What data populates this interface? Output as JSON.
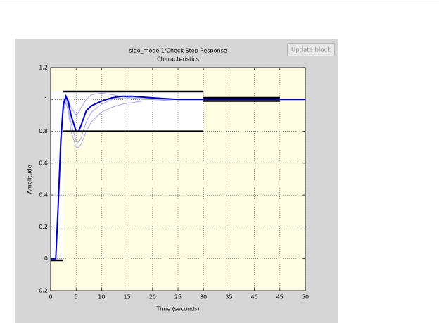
{
  "ui": {
    "button": "Update block"
  },
  "chart_data": {
    "type": "line",
    "title": [
      "sldo_model1/Check Step Response",
      "Characteristics"
    ],
    "x_label": "Time (seconds)",
    "y_label": "Amplitude",
    "x": [
      0,
      1,
      1.5,
      2,
      2.5,
      3,
      3.5,
      4,
      5,
      5.5,
      6,
      7,
      8,
      10,
      12,
      14,
      16,
      18,
      20,
      25,
      30,
      35,
      40,
      45,
      50
    ],
    "series": [
      {
        "color": "#9a9af0",
        "values": [
          0,
          0,
          0.3,
          0.7,
          0.95,
          1.0,
          0.95,
          0.85,
          0.74,
          0.73,
          0.76,
          0.86,
          0.92,
          0.97,
          1.0,
          1.01,
          1.01,
          1.01,
          1.005,
          1.0,
          1.0,
          1.0,
          1.0,
          1.0,
          1.0
        ]
      },
      {
        "color": "#9a9af0",
        "values": [
          0,
          0,
          0.28,
          0.68,
          0.93,
          0.98,
          0.92,
          0.8,
          0.7,
          0.7,
          0.72,
          0.8,
          0.86,
          0.92,
          0.95,
          0.97,
          0.98,
          0.99,
          0.99,
          1.0,
          1.0,
          1.0,
          1.0,
          1.0,
          1.0
        ]
      },
      {
        "color": "#9a9af0",
        "values": [
          0,
          0,
          0.32,
          0.72,
          0.96,
          1.02,
          1.0,
          0.95,
          0.9,
          0.92,
          0.95,
          1.0,
          1.03,
          1.04,
          1.03,
          1.02,
          1.01,
          1.0,
          1.0,
          1.0,
          1.0,
          1.0,
          1.0,
          1.0,
          1.0
        ]
      },
      {
        "color": "#0000cc",
        "values": [
          0,
          0,
          0.35,
          0.75,
          0.97,
          1.02,
          0.98,
          0.9,
          0.8,
          0.8,
          0.84,
          0.93,
          0.96,
          0.99,
          1.01,
          1.02,
          1.02,
          1.015,
          1.01,
          1.0,
          1.0,
          1.0,
          1.0,
          1.0,
          1.0
        ]
      }
    ],
    "bounds": [
      {
        "x": [
          0,
          2.5
        ],
        "values": [
          -0.01,
          -0.01
        ]
      },
      {
        "x": [
          2.5,
          30
        ],
        "values": [
          0.8,
          0.8
        ]
      },
      {
        "x": [
          2.5,
          30
        ],
        "values": [
          1.05,
          1.05
        ]
      },
      {
        "x": [
          30,
          45
        ],
        "values": [
          0.99,
          0.99
        ]
      },
      {
        "x": [
          30,
          45
        ],
        "values": [
          1.01,
          1.01
        ]
      }
    ],
    "xlim": [
      0,
      50
    ],
    "ylim": [
      -0.2,
      1.2
    ],
    "xticks": [
      0,
      5,
      10,
      15,
      20,
      25,
      30,
      35,
      40,
      45,
      50
    ],
    "yticks": [
      -0.2,
      0,
      0.2,
      0.4,
      0.6,
      0.8,
      1,
      1.2
    ],
    "grid": true,
    "background": "#fffde2"
  }
}
